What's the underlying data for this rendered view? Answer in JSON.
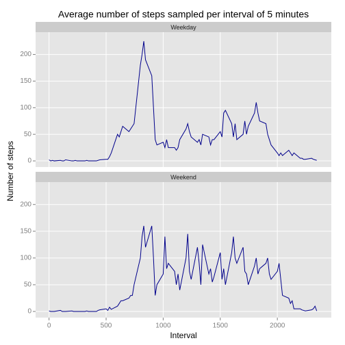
{
  "title": "Average number of steps sampled per interval of 5 minutes",
  "xlabel": "Interval",
  "ylabel": "Number of steps",
  "chart_data": [
    {
      "type": "line",
      "subtitle": "Weekday",
      "x": [
        0,
        15,
        30,
        45,
        100,
        115,
        130,
        145,
        200,
        215,
        230,
        245,
        300,
        315,
        330,
        345,
        400,
        415,
        430,
        445,
        500,
        515,
        530,
        545,
        600,
        615,
        630,
        645,
        700,
        715,
        730,
        745,
        800,
        815,
        830,
        845,
        900,
        915,
        930,
        945,
        1000,
        1015,
        1030,
        1045,
        1100,
        1115,
        1130,
        1145,
        1200,
        1215,
        1230,
        1245,
        1300,
        1315,
        1330,
        1345,
        1400,
        1415,
        1430,
        1445,
        1500,
        1515,
        1530,
        1545,
        1600,
        1615,
        1630,
        1645,
        1700,
        1715,
        1730,
        1745,
        1800,
        1815,
        1830,
        1845,
        1900,
        1915,
        1930,
        1945,
        2000,
        2015,
        2030,
        2045,
        2100,
        2115,
        2130,
        2145,
        2200,
        2215,
        2230,
        2245,
        2300,
        2315,
        2330,
        2345
      ],
      "series": [
        {
          "name": "Weekday",
          "color": "#00008b",
          "values": [
            2,
            0,
            1,
            0,
            1,
            0,
            0,
            2,
            0,
            0,
            1,
            0,
            0,
            0,
            1,
            0,
            0,
            0,
            1,
            2,
            3,
            3,
            8,
            15,
            50,
            45,
            55,
            65,
            55,
            60,
            65,
            70,
            180,
            200,
            225,
            190,
            160,
            100,
            40,
            30,
            35,
            25,
            40,
            25,
            25,
            20,
            25,
            40,
            60,
            70,
            55,
            45,
            35,
            40,
            30,
            50,
            45,
            30,
            40,
            40,
            55,
            45,
            90,
            95,
            70,
            45,
            70,
            40,
            50,
            75,
            50,
            65,
            90,
            110,
            90,
            75,
            70,
            50,
            40,
            30,
            15,
            10,
            15,
            10,
            20,
            15,
            10,
            15,
            5,
            5,
            3,
            3,
            5,
            3,
            2,
            1
          ]
        }
      ],
      "xlim": [
        -117.75,
        2472.75
      ],
      "xticks": [
        0,
        500,
        1000,
        1500,
        2000
      ],
      "ylim": [
        -11.5,
        241.9
      ],
      "yticks": [
        0,
        50,
        100,
        150,
        200
      ],
      "grid": true
    },
    {
      "type": "line",
      "subtitle": "Weekend",
      "x": [
        0,
        15,
        30,
        45,
        100,
        115,
        130,
        145,
        200,
        215,
        230,
        245,
        300,
        315,
        330,
        345,
        400,
        415,
        430,
        445,
        500,
        515,
        530,
        545,
        600,
        615,
        630,
        645,
        700,
        715,
        730,
        745,
        800,
        815,
        830,
        845,
        900,
        915,
        930,
        945,
        1000,
        1015,
        1030,
        1045,
        1100,
        1115,
        1130,
        1145,
        1200,
        1215,
        1230,
        1245,
        1300,
        1315,
        1330,
        1345,
        1400,
        1415,
        1430,
        1445,
        1500,
        1515,
        1530,
        1545,
        1600,
        1615,
        1630,
        1645,
        1700,
        1715,
        1730,
        1745,
        1800,
        1815,
        1830,
        1845,
        1900,
        1915,
        1930,
        1945,
        2000,
        2015,
        2030,
        2045,
        2100,
        2115,
        2130,
        2145,
        2200,
        2215,
        2230,
        2245,
        2300,
        2315,
        2330,
        2345
      ],
      "series": [
        {
          "name": "Weekend",
          "color": "#00008b",
          "values": [
            1,
            0,
            0,
            0,
            2,
            0,
            0,
            0,
            1,
            0,
            0,
            0,
            0,
            0,
            1,
            0,
            0,
            0,
            2,
            3,
            5,
            2,
            8,
            4,
            10,
            15,
            20,
            20,
            25,
            30,
            30,
            50,
            100,
            140,
            160,
            120,
            160,
            100,
            30,
            50,
            70,
            140,
            80,
            90,
            75,
            50,
            70,
            40,
            100,
            145,
            75,
            60,
            120,
            90,
            50,
            125,
            70,
            80,
            55,
            65,
            110,
            60,
            80,
            50,
            110,
            140,
            100,
            90,
            120,
            75,
            70,
            50,
            85,
            100,
            70,
            80,
            90,
            100,
            70,
            60,
            75,
            90,
            60,
            30,
            25,
            15,
            20,
            5,
            5,
            3,
            2,
            1,
            3,
            5,
            10,
            1
          ]
        }
      ],
      "xlim": [
        -117.75,
        2472.75
      ],
      "xticks": [
        0,
        500,
        1000,
        1500,
        2000
      ],
      "ylim": [
        -11.5,
        241.9
      ],
      "yticks": [
        0,
        50,
        100,
        150,
        200
      ],
      "grid": true
    }
  ]
}
